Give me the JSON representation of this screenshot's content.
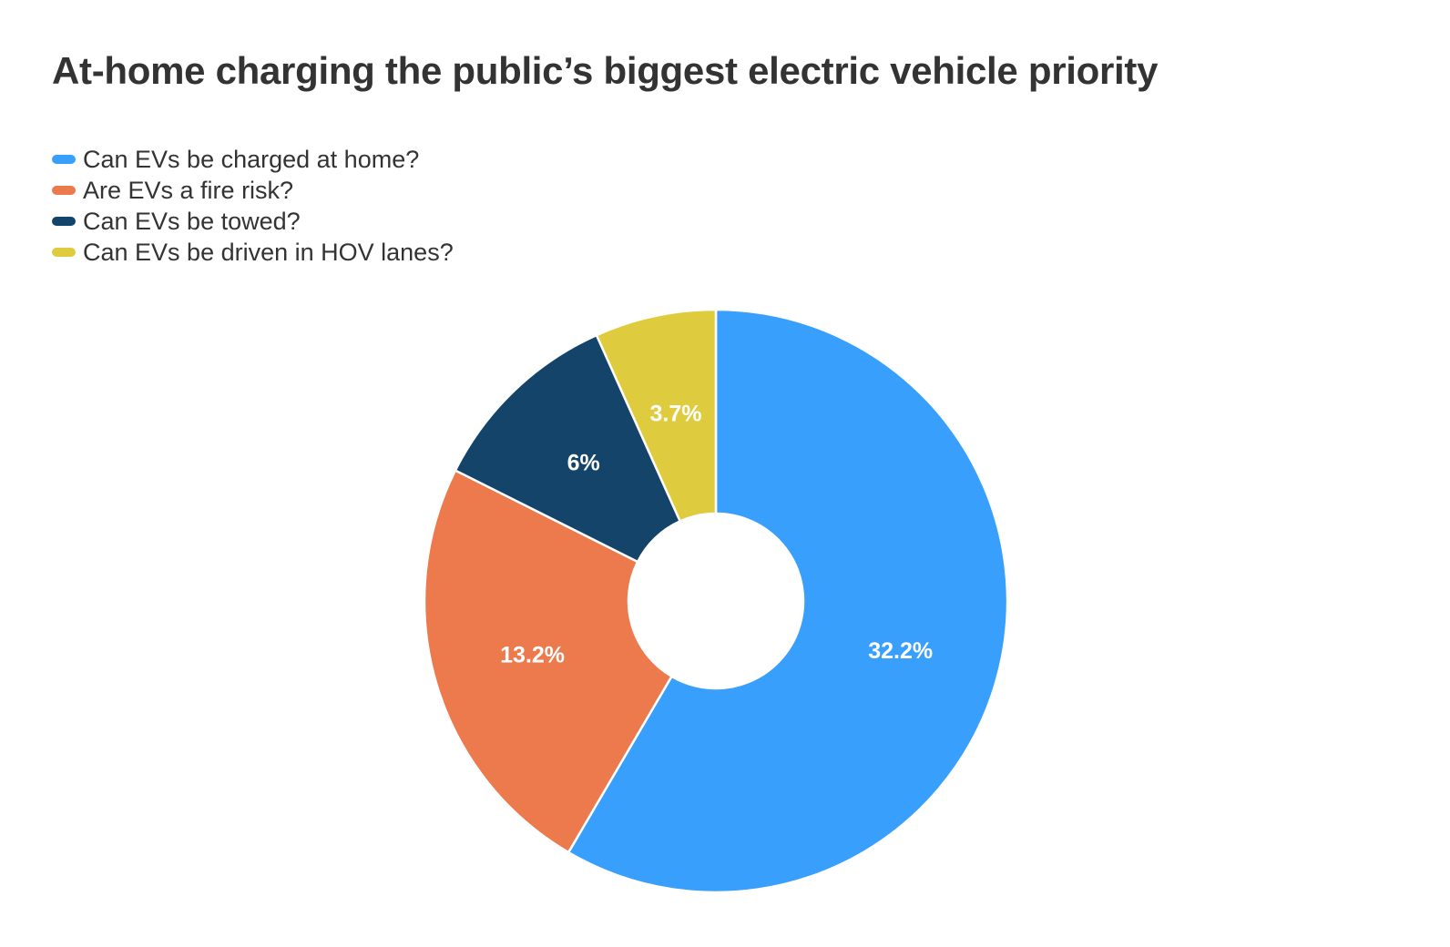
{
  "chart_data": {
    "type": "pie",
    "title": "At-home charging the public’s biggest electric vehicle priority",
    "legend_position": "top-left",
    "hole": true,
    "categories": [
      "Can EVs be charged at home?",
      "Are EVs a fire risk?",
      "Can EVs be towed?",
      "Can EVs be driven in HOV lanes?"
    ],
    "values": [
      32.2,
      13.2,
      6,
      3.7
    ],
    "labels": [
      "32.2%",
      "13.2%",
      "6%",
      "3.7%"
    ],
    "colors": [
      "#399ffd",
      "#ec7a4c",
      "#14446a",
      "#dfcc3e"
    ]
  }
}
